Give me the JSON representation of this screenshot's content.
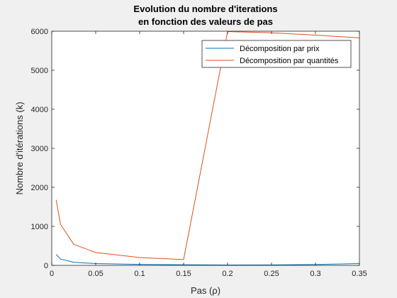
{
  "chart_data": {
    "type": "line",
    "title": [
      "Evolution du nombre d'iterations",
      "en fonction des valeurs de pas"
    ],
    "xlabel": "Pas (ρ)",
    "ylabel": "Nombre d'itérations (k)",
    "xlim": [
      0,
      0.35
    ],
    "ylim": [
      0,
      6000
    ],
    "xticks": [
      0,
      0.05,
      0.1,
      0.15,
      0.2,
      0.25,
      0.3,
      0.35
    ],
    "xtick_labels": [
      "0",
      "0.05",
      "0.1",
      "0.15",
      "0.2",
      "0.25",
      "0.3",
      "0.35"
    ],
    "yticks": [
      0,
      1000,
      2000,
      3000,
      4000,
      5000,
      6000
    ],
    "ytick_labels": [
      "0",
      "1000",
      "2000",
      "3000",
      "4000",
      "5000",
      "6000"
    ],
    "grid": false,
    "legend_position": "top-right",
    "series": [
      {
        "name": "Décomposition par prix",
        "color": "#0072bd",
        "x": [
          0.005,
          0.01,
          0.025,
          0.05,
          0.1,
          0.15,
          0.2,
          0.25,
          0.3,
          0.35
        ],
        "y": [
          280,
          160,
          80,
          45,
          25,
          15,
          10,
          12,
          22,
          45
        ]
      },
      {
        "name": "Décomposition par quantités",
        "color": "#d95319",
        "x": [
          0.005,
          0.01,
          0.025,
          0.05,
          0.1,
          0.15,
          0.2,
          0.25,
          0.3,
          0.35
        ],
        "y": [
          1680,
          1050,
          540,
          330,
          200,
          150,
          5990,
          5960,
          5900,
          5830
        ]
      }
    ]
  }
}
